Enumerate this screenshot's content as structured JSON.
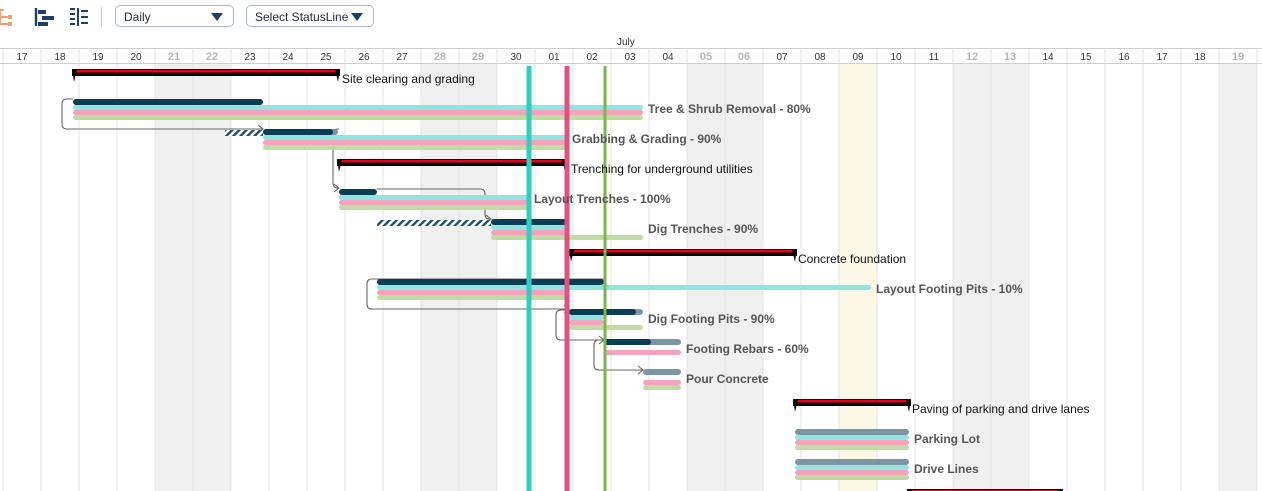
{
  "toolbar": {
    "icons": [
      "collapse-tree-icon",
      "expand-levels-icon",
      "outline-list-icon"
    ],
    "view_select": {
      "label": "Daily"
    },
    "status_select": {
      "label": "Select StatusLine"
    }
  },
  "timeline": {
    "month": "July",
    "days": [
      "17",
      "18",
      "19",
      "20",
      "21",
      "22",
      "23",
      "24",
      "25",
      "26",
      "27",
      "28",
      "29",
      "30",
      "01",
      "02",
      "03",
      "04",
      "05",
      "06",
      "07",
      "08",
      "09",
      "10",
      "11",
      "12",
      "13",
      "14",
      "15",
      "16",
      "17",
      "18",
      "19"
    ],
    "weekend_days": [
      "21",
      "22",
      "28",
      "29",
      "05",
      "06",
      "12",
      "13",
      "19"
    ],
    "highlight_day": "09"
  },
  "status_lines": [
    {
      "name": "status-line-cyan",
      "color": "#2ccfc0"
    },
    {
      "name": "status-line-pink",
      "color": "#e6507e"
    },
    {
      "name": "status-line-green",
      "color": "#74b94a"
    }
  ],
  "tasks": [
    {
      "name": "Site clearing and grading",
      "summary": true
    },
    {
      "name": "Tree & Shrub Removal",
      "percent": 80
    },
    {
      "name": "Grabbing & Grading",
      "percent": 90
    },
    {
      "name": "Trenching for underground utilities",
      "summary": true
    },
    {
      "name": "Layout Trenches",
      "percent": 100
    },
    {
      "name": "Dig Trenches",
      "percent": 90
    },
    {
      "name": "Concrete foundation",
      "summary": true
    },
    {
      "name": "Layout Footing Pits",
      "percent": 10
    },
    {
      "name": "Dig Footing Pits",
      "percent": 90
    },
    {
      "name": "Footing Rebars",
      "percent": 60
    },
    {
      "name": "Pour Concrete"
    },
    {
      "name": "Paving of parking and drive lanes",
      "summary": true
    },
    {
      "name": "Parking Lot"
    },
    {
      "name": "Drive Lines"
    }
  ],
  "colors": {
    "progress": "#0b3d55",
    "baseline_cyan": "#8fe6e0",
    "baseline_pink": "#f5a3bd",
    "baseline_green": "#bfdca3",
    "summary_red": "#e8001c",
    "weekend": "#efefef",
    "highlight": "#fbf8e6"
  }
}
